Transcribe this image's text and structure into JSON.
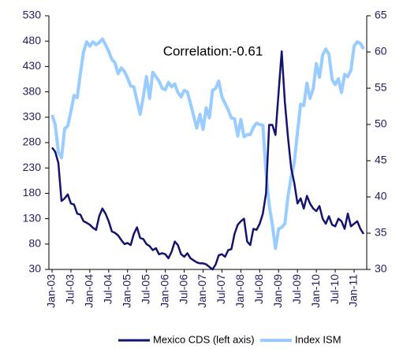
{
  "chart_data": {
    "type": "line",
    "annotation": "Correlation:-0.61",
    "categories": [
      "Jan-03",
      null,
      null,
      null,
      null,
      null,
      "Jul-03",
      null,
      null,
      null,
      null,
      null,
      "Jan-04",
      null,
      null,
      null,
      null,
      null,
      "Jul-04",
      null,
      null,
      null,
      null,
      null,
      "Jan-05",
      null,
      null,
      null,
      null,
      null,
      "Jul-05",
      null,
      null,
      null,
      null,
      null,
      "Jan-06",
      null,
      null,
      null,
      null,
      null,
      "Jul-06",
      null,
      null,
      null,
      null,
      null,
      "Jan-07",
      null,
      null,
      null,
      null,
      null,
      "Jul-07",
      null,
      null,
      null,
      null,
      null,
      "Jan-08",
      null,
      null,
      null,
      null,
      null,
      "Jul-08",
      null,
      null,
      null,
      null,
      null,
      "Jan-09",
      null,
      null,
      null,
      null,
      null,
      "Jul-09",
      null,
      null,
      null,
      null,
      null,
      "Jan-10",
      null,
      null,
      null,
      null,
      null,
      "Jul-10",
      null,
      null,
      null,
      null,
      null,
      "Jan-11",
      null,
      null,
      null
    ],
    "series": [
      {
        "name": "Mexico CDS (left axis)",
        "color": "#14146e",
        "axis": "y",
        "values": [
          270,
          262,
          240,
          165,
          170,
          178,
          160,
          158,
          140,
          138,
          125,
          122,
          118,
          112,
          108,
          135,
          150,
          140,
          125,
          105,
          102,
          97,
          88,
          80,
          82,
          78,
          100,
          113,
          92,
          90,
          80,
          76,
          68,
          72,
          60,
          62,
          60,
          52,
          65,
          85,
          78,
          60,
          55,
          62,
          52,
          48,
          44,
          42,
          42,
          40,
          35,
          30,
          40,
          58,
          60,
          55,
          68,
          70,
          100,
          118,
          125,
          130,
          85,
          78,
          110,
          108,
          120,
          140,
          180,
          315,
          315,
          295,
          380,
          460,
          360,
          290,
          230,
          200,
          160,
          170,
          150,
          175,
          160,
          150,
          145,
          155,
          130,
          120,
          135,
          118,
          115,
          130,
          125,
          110,
          140,
          115,
          120,
          125,
          110,
          100
        ]
      },
      {
        "name": "Index ISM",
        "color": "#99ccff",
        "axis": "y2",
        "values": [
          51.3,
          50,
          46.2,
          45.4,
          49.4,
          49.8,
          51.8,
          54,
          53.7,
          57,
          60,
          61.4,
          60.8,
          61.4,
          61,
          61.3,
          61.8,
          61,
          60.1,
          59,
          58.5,
          57,
          57.8,
          57.3,
          56.4,
          55.3,
          55.2,
          53.3,
          51.4,
          53.8,
          56.6,
          53.6,
          57.2,
          56.6,
          56,
          55,
          54.8,
          55.8,
          55.2,
          55.6,
          54.4,
          53.8,
          54.7,
          54.5,
          52.9,
          51.2,
          49.5,
          51.4,
          49.3,
          52.3,
          50.9,
          54.7,
          55,
          56,
          53.8,
          52.9,
          52,
          50.9,
          50.8,
          48.4,
          50.7,
          48.3,
          48.6,
          48.6,
          49.6,
          50.2,
          50,
          49.9,
          43.4,
          38.9,
          36.2,
          32.9,
          35.6,
          35.8,
          36.3,
          40.1,
          42.8,
          44.8,
          48.9,
          52.8,
          52.6,
          55.7,
          53.6,
          54.9,
          58.4,
          56.5,
          59.6,
          60.4,
          59.7,
          56.2,
          55.5,
          56.3,
          54.4,
          56.9,
          56.6,
          57.5,
          60.8,
          61.4,
          61.2,
          60.4
        ]
      }
    ],
    "ylim": [
      30,
      530
    ],
    "yticks": [
      30,
      80,
      130,
      180,
      230,
      280,
      330,
      380,
      430,
      480,
      530
    ],
    "y2lim": [
      30,
      65
    ],
    "y2ticks": [
      30,
      35,
      40,
      45,
      50,
      55,
      60,
      65
    ]
  }
}
